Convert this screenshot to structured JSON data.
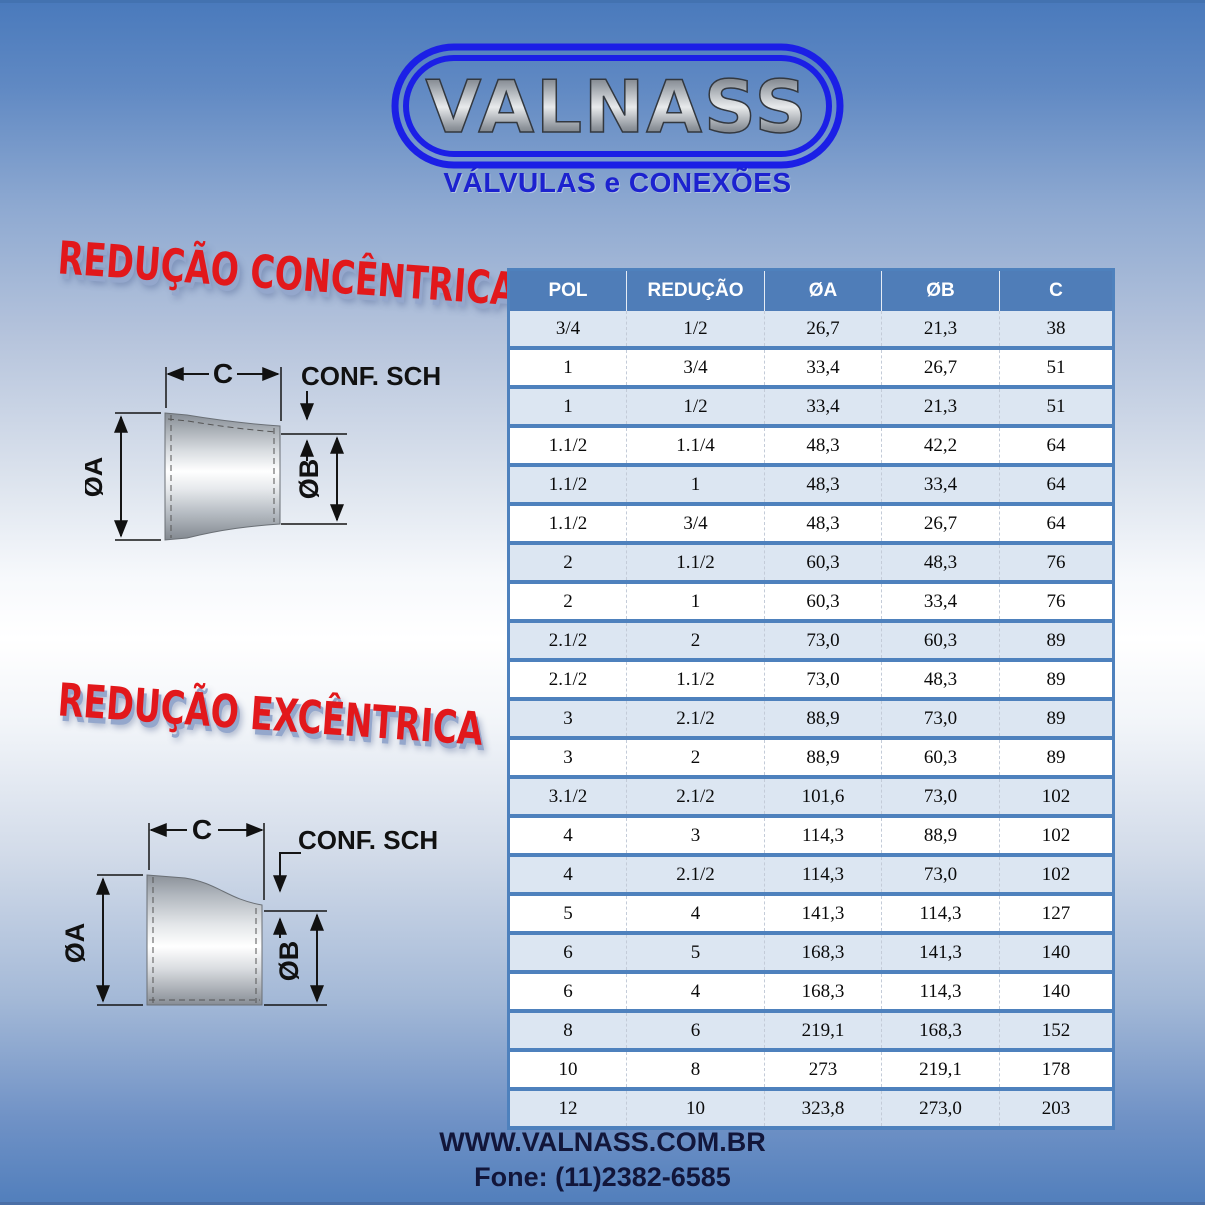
{
  "logo": {
    "brand": "VALNASS",
    "tagline": "VÁLVULAS e CONEXÕES"
  },
  "sections": {
    "concentric": {
      "title": "REDUÇÃO CONCÊNTRICA"
    },
    "eccentric": {
      "title": "REDUÇÃO EXCÊNTRICA"
    }
  },
  "diagram_labels": {
    "length": "C",
    "sch": "CONF. SCH",
    "dia_a": "ØA",
    "dia_b": "ØB"
  },
  "table": {
    "headers": [
      "POL",
      "REDUÇÃO",
      "ØA",
      "ØB",
      "C"
    ],
    "rows": [
      [
        "3/4",
        "1/2",
        "26,7",
        "21,3",
        "38"
      ],
      [
        "1",
        "3/4",
        "33,4",
        "26,7",
        "51"
      ],
      [
        "1",
        "1/2",
        "33,4",
        "21,3",
        "51"
      ],
      [
        "1.1/2",
        "1.1/4",
        "48,3",
        "42,2",
        "64"
      ],
      [
        "1.1/2",
        "1",
        "48,3",
        "33,4",
        "64"
      ],
      [
        "1.1/2",
        "3/4",
        "48,3",
        "26,7",
        "64"
      ],
      [
        "2",
        "1.1/2",
        "60,3",
        "48,3",
        "76"
      ],
      [
        "2",
        "1",
        "60,3",
        "33,4",
        "76"
      ],
      [
        "2.1/2",
        "2",
        "73,0",
        "60,3",
        "89"
      ],
      [
        "2.1/2",
        "1.1/2",
        "73,0",
        "48,3",
        "89"
      ],
      [
        "3",
        "2.1/2",
        "88,9",
        "73,0",
        "89"
      ],
      [
        "3",
        "2",
        "88,9",
        "60,3",
        "89"
      ],
      [
        "3.1/2",
        "2.1/2",
        "101,6",
        "73,0",
        "102"
      ],
      [
        "4",
        "3",
        "114,3",
        "88,9",
        "102"
      ],
      [
        "4",
        "2.1/2",
        "114,3",
        "73,0",
        "102"
      ],
      [
        "5",
        "4",
        "141,3",
        "114,3",
        "127"
      ],
      [
        "6",
        "5",
        "168,3",
        "141,3",
        "140"
      ],
      [
        "6",
        "4",
        "168,3",
        "114,3",
        "140"
      ],
      [
        "8",
        "6",
        "219,1",
        "168,3",
        "152"
      ],
      [
        "10",
        "8",
        "273",
        "219,1",
        "178"
      ],
      [
        "12",
        "10",
        "323,8",
        "273,0",
        "203"
      ]
    ]
  },
  "footer": {
    "website": "WWW.VALNASS.COM.BR",
    "phone": "Fone: (11)2382-6585"
  },
  "colors": {
    "accent_blue": "#4e81bd",
    "header_blue": "#4f7db8",
    "light_row": "#dce6f2",
    "title_red": "#e2181b",
    "ring_blue": "#1b1fe6",
    "tagline_blue": "#1c22cf"
  }
}
